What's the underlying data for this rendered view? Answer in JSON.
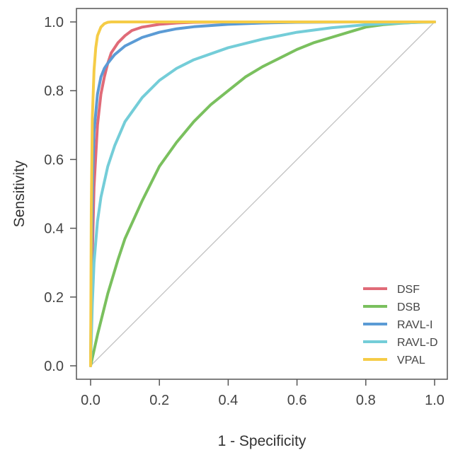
{
  "chart_data": {
    "type": "line",
    "title": "",
    "xlabel": "1 - Specificity",
    "ylabel": "Sensitivity",
    "xlim": [
      0,
      1
    ],
    "ylim": [
      0,
      1
    ],
    "x_ticks": [
      "0.0",
      "0.2",
      "0.4",
      "0.6",
      "0.8",
      "1.0"
    ],
    "y_ticks": [
      "0.0",
      "0.2",
      "0.4",
      "0.6",
      "0.8",
      "1.0"
    ],
    "grid": false,
    "legend_position": "bottom-right",
    "reference_line": {
      "x": [
        0,
        1
      ],
      "y": [
        0,
        1
      ],
      "color": "#c0c0c0"
    },
    "series": [
      {
        "name": "DSF",
        "color": "#e06b78",
        "points": [
          [
            0,
            0
          ],
          [
            0.005,
            0.32
          ],
          [
            0.01,
            0.52
          ],
          [
            0.02,
            0.7
          ],
          [
            0.03,
            0.79
          ],
          [
            0.04,
            0.84
          ],
          [
            0.05,
            0.88
          ],
          [
            0.06,
            0.91
          ],
          [
            0.08,
            0.94
          ],
          [
            0.1,
            0.96
          ],
          [
            0.12,
            0.975
          ],
          [
            0.15,
            0.985
          ],
          [
            0.2,
            0.993
          ],
          [
            0.25,
            0.997
          ],
          [
            0.3,
            0.999
          ],
          [
            0.4,
            1.0
          ],
          [
            0.6,
            1.0
          ],
          [
            0.8,
            1.0
          ],
          [
            1.0,
            1.0
          ]
        ]
      },
      {
        "name": "DSB",
        "color": "#7ac05e",
        "points": [
          [
            0,
            0
          ],
          [
            0.02,
            0.09
          ],
          [
            0.05,
            0.21
          ],
          [
            0.08,
            0.31
          ],
          [
            0.1,
            0.37
          ],
          [
            0.15,
            0.48
          ],
          [
            0.2,
            0.58
          ],
          [
            0.25,
            0.65
          ],
          [
            0.3,
            0.71
          ],
          [
            0.35,
            0.76
          ],
          [
            0.4,
            0.8
          ],
          [
            0.45,
            0.84
          ],
          [
            0.5,
            0.87
          ],
          [
            0.55,
            0.895
          ],
          [
            0.6,
            0.92
          ],
          [
            0.65,
            0.94
          ],
          [
            0.7,
            0.955
          ],
          [
            0.75,
            0.97
          ],
          [
            0.8,
            0.985
          ],
          [
            0.85,
            0.992
          ],
          [
            0.9,
            0.996
          ],
          [
            0.95,
            0.999
          ],
          [
            1.0,
            1.0
          ]
        ]
      },
      {
        "name": "RAVL-I",
        "color": "#5b9bd5",
        "points": [
          [
            0,
            0
          ],
          [
            0.003,
            0.35
          ],
          [
            0.006,
            0.55
          ],
          [
            0.01,
            0.68
          ],
          [
            0.02,
            0.79
          ],
          [
            0.03,
            0.84
          ],
          [
            0.04,
            0.865
          ],
          [
            0.05,
            0.88
          ],
          [
            0.07,
            0.905
          ],
          [
            0.1,
            0.93
          ],
          [
            0.15,
            0.955
          ],
          [
            0.2,
            0.97
          ],
          [
            0.25,
            0.98
          ],
          [
            0.3,
            0.986
          ],
          [
            0.4,
            0.993
          ],
          [
            0.5,
            0.997
          ],
          [
            0.6,
            0.999
          ],
          [
            0.8,
            1.0
          ],
          [
            1.0,
            1.0
          ]
        ]
      },
      {
        "name": "RAVL-D",
        "color": "#74cdd8",
        "points": [
          [
            0,
            0
          ],
          [
            0.005,
            0.18
          ],
          [
            0.01,
            0.3
          ],
          [
            0.02,
            0.42
          ],
          [
            0.03,
            0.49
          ],
          [
            0.05,
            0.58
          ],
          [
            0.07,
            0.64
          ],
          [
            0.1,
            0.71
          ],
          [
            0.15,
            0.78
          ],
          [
            0.2,
            0.83
          ],
          [
            0.25,
            0.865
          ],
          [
            0.3,
            0.89
          ],
          [
            0.4,
            0.925
          ],
          [
            0.5,
            0.95
          ],
          [
            0.6,
            0.97
          ],
          [
            0.7,
            0.983
          ],
          [
            0.8,
            0.992
          ],
          [
            0.9,
            0.997
          ],
          [
            1.0,
            1.0
          ]
        ]
      },
      {
        "name": "VPAL",
        "color": "#f5cc47",
        "points": [
          [
            0,
            0
          ],
          [
            0.002,
            0.45
          ],
          [
            0.005,
            0.72
          ],
          [
            0.01,
            0.86
          ],
          [
            0.015,
            0.925
          ],
          [
            0.02,
            0.96
          ],
          [
            0.03,
            0.985
          ],
          [
            0.04,
            0.995
          ],
          [
            0.05,
            0.999
          ],
          [
            0.06,
            1.0
          ],
          [
            0.2,
            1.0
          ],
          [
            0.5,
            1.0
          ],
          [
            0.8,
            1.0
          ],
          [
            1.0,
            1.0
          ]
        ]
      }
    ]
  }
}
